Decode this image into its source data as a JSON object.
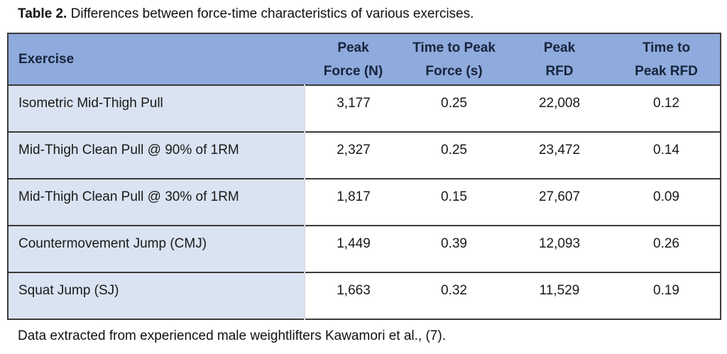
{
  "title": {
    "label": "Table 2.",
    "text": " Differences between force-time characteristics of various exercises."
  },
  "table": {
    "header": [
      {
        "line1": "Exercise",
        "line2": ""
      },
      {
        "line1": "Peak",
        "line2": "Force (N)"
      },
      {
        "line1": "Time to Peak",
        "line2": "Force (s)"
      },
      {
        "line1": "Peak",
        "line2": "RFD"
      },
      {
        "line1": "Time to",
        "line2": "Peak RFD"
      }
    ],
    "rows": [
      [
        "Isometric Mid-Thigh Pull",
        "3,177",
        "0.25",
        "22,008",
        "0.12"
      ],
      [
        "Mid-Thigh Clean Pull @ 90% of 1RM",
        "2,327",
        "0.25",
        "23,472",
        "0.14"
      ],
      [
        "Mid-Thigh Clean Pull @ 30% of 1RM",
        "1,817",
        "0.15",
        "27,607",
        "0.09"
      ],
      [
        "Countermovement Jump (CMJ)",
        "1,449",
        "0.39",
        "12,093",
        "0.26"
      ],
      [
        "Squat Jump (SJ)",
        "1,663",
        "0.32",
        "11,529",
        "0.19"
      ]
    ]
  },
  "footer_note": "Data extracted from experienced male weightlifters Kawamori et al., (7).",
  "colors": {
    "header_bg": "#8FAADC",
    "exercise_column_bg": "#DAE3F1",
    "header_text": "#16243C",
    "border": "#3B3B3B"
  }
}
